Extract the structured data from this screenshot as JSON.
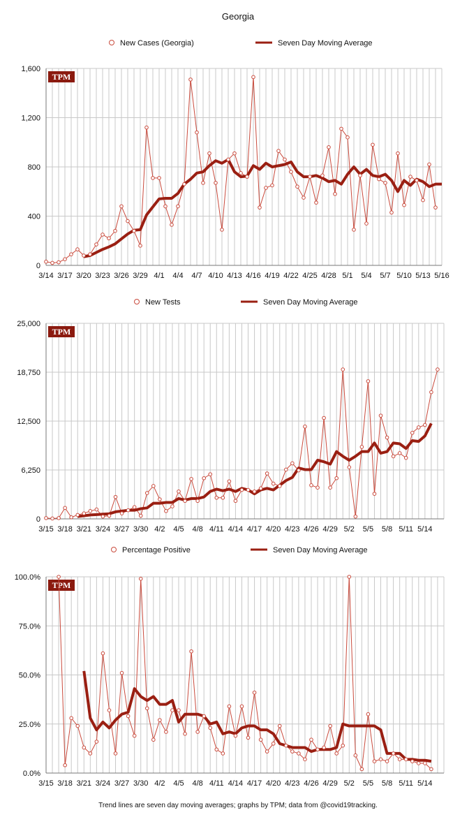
{
  "title": "Georgia",
  "footer": "Trend lines are seven day moving averages; graphs by TPM; data from @covid19tracking.",
  "colors": {
    "raw": "#c94a3c",
    "avg": "#9a1f12",
    "logo": "#8b1a0f"
  },
  "chart_data": [
    {
      "type": "line",
      "logo": "TPM",
      "legend": [
        "New Cases (Georgia)",
        "Seven Day Moving Average"
      ],
      "ylim": [
        0,
        1600
      ],
      "yticks": [
        0,
        400,
        800,
        1200,
        1600
      ],
      "ytick_labels": [
        "0",
        "400",
        "800",
        "1,200",
        "1,600"
      ],
      "xlim": [
        0,
        63
      ],
      "xticks": [
        0,
        3,
        6,
        9,
        12,
        15,
        18,
        21,
        24,
        27,
        30,
        33,
        36,
        39,
        42,
        45,
        48,
        51,
        54,
        57,
        60,
        63
      ],
      "xtick_labels": [
        "3/14",
        "3/17",
        "3/20",
        "3/23",
        "3/26",
        "3/29",
        "4/1",
        "4/4",
        "4/7",
        "4/10",
        "4/13",
        "4/16",
        "4/19",
        "4/22",
        "4/25",
        "4/28",
        "5/1",
        "5/4",
        "5/7",
        "5/10",
        "5/13",
        "5/16"
      ],
      "x_start": 0,
      "values": [
        30,
        20,
        25,
        50,
        90,
        130,
        80,
        90,
        170,
        250,
        220,
        280,
        480,
        360,
        280,
        160,
        1120,
        710,
        710,
        480,
        330,
        480,
        660,
        1510,
        1080,
        670,
        910,
        670,
        290,
        860,
        910,
        750,
        720,
        1530,
        470,
        630,
        650,
        930,
        860,
        760,
        640,
        550,
        720,
        510,
        730,
        960,
        580,
        1110,
        1040,
        290,
        730,
        340,
        980,
        700,
        670,
        430,
        910,
        490,
        720,
        690,
        530,
        820,
        470
      ],
      "avg_start": 6,
      "avg_values": [
        70,
        80,
        105,
        130,
        150,
        175,
        215,
        255,
        285,
        290,
        410,
        475,
        540,
        545,
        545,
        585,
        660,
        700,
        750,
        760,
        810,
        850,
        830,
        860,
        760,
        720,
        725,
        810,
        780,
        830,
        800,
        810,
        820,
        840,
        760,
        720,
        720,
        730,
        710,
        680,
        690,
        660,
        740,
        800,
        740,
        780,
        730,
        720,
        740,
        690,
        600,
        690,
        650,
        700,
        680,
        640,
        660,
        660
      ]
    },
    {
      "type": "line",
      "logo": "TPM",
      "legend": [
        "New Tests",
        "Seven Day Moving Average"
      ],
      "ylim": [
        0,
        25000
      ],
      "yticks": [
        0,
        6250,
        12500,
        18750,
        25000
      ],
      "ytick_labels": [
        "0",
        "6,250",
        "12,500",
        "18,750",
        "25,000"
      ],
      "xlim": [
        0,
        63
      ],
      "xticks": [
        0,
        3,
        6,
        9,
        12,
        15,
        18,
        21,
        24,
        27,
        30,
        33,
        36,
        39,
        42,
        45,
        48,
        51,
        54,
        57,
        60
      ],
      "xtick_labels": [
        "3/15",
        "3/18",
        "3/21",
        "3/24",
        "3/27",
        "3/30",
        "4/2",
        "4/5",
        "4/8",
        "4/11",
        "4/14",
        "4/17",
        "4/20",
        "4/23",
        "4/26",
        "4/29",
        "5/2",
        "5/5",
        "5/8",
        "5/11",
        "5/14"
      ],
      "x_start": 0,
      "values": [
        100,
        50,
        100,
        1400,
        200,
        500,
        700,
        1000,
        1200,
        300,
        400,
        2800,
        700,
        1100,
        1500,
        400,
        3300,
        4200,
        2500,
        1000,
        1600,
        3500,
        2300,
        5100,
        2300,
        5200,
        5700,
        2700,
        2700,
        4800,
        2300,
        3700,
        3700,
        3500,
        3900,
        5800,
        4500,
        4200,
        6300,
        7100,
        6200,
        11800,
        4300,
        4000,
        12900,
        4000,
        5200,
        19100,
        6600,
        300,
        9200,
        17600,
        3200,
        13200,
        10400,
        8000,
        8400,
        7800,
        11000,
        11700,
        12000,
        16200,
        19100
      ],
      "avg_start": 5,
      "avg_values": [
        300,
        400,
        500,
        550,
        600,
        650,
        900,
        1000,
        1100,
        1100,
        1300,
        1400,
        2000,
        2000,
        2100,
        2100,
        2600,
        2400,
        2600,
        2600,
        2800,
        3500,
        3800,
        3600,
        3800,
        3500,
        3900,
        3700,
        3200,
        3700,
        3900,
        3700,
        4300,
        4900,
        5300,
        6500,
        6300,
        6300,
        7500,
        7300,
        7000,
        8600,
        8000,
        7500,
        8000,
        8600,
        8600,
        9700,
        8400,
        8600,
        9700,
        9600,
        9000,
        10000,
        9900,
        10600,
        12200
      ]
    },
    {
      "type": "line",
      "logo": "TPM",
      "legend": [
        "Percentage Positive",
        "Seven Day Moving Average"
      ],
      "ylim": [
        0,
        100
      ],
      "yticks": [
        0,
        25,
        50,
        75,
        100
      ],
      "ytick_labels": [
        "0.0%",
        "25.0%",
        "50.0%",
        "75.0%",
        "100.0%"
      ],
      "xlim": [
        0,
        63
      ],
      "xticks": [
        0,
        3,
        6,
        9,
        12,
        15,
        18,
        21,
        24,
        27,
        30,
        33,
        36,
        39,
        42,
        45,
        48,
        51,
        54,
        57,
        60
      ],
      "xtick_labels": [
        "3/15",
        "3/18",
        "3/21",
        "3/24",
        "3/27",
        "3/30",
        "4/2",
        "4/5",
        "4/8",
        "4/11",
        "4/14",
        "4/17",
        "4/20",
        "4/23",
        "4/26",
        "4/29",
        "5/2",
        "5/5",
        "5/8",
        "5/11",
        "5/14"
      ],
      "x_start": 2,
      "values": [
        100,
        4,
        28,
        24,
        13,
        10,
        16,
        61,
        32,
        10,
        51,
        29,
        19,
        99,
        33,
        17,
        27,
        21,
        32,
        32,
        20,
        62,
        21,
        29,
        23,
        12,
        10,
        34,
        19,
        34,
        18,
        41,
        17,
        11,
        15,
        24,
        14,
        11,
        10,
        7,
        17,
        12,
        13,
        24,
        10,
        14,
        100,
        9,
        2,
        30,
        6,
        7,
        6,
        10,
        7,
        7,
        6,
        5,
        5,
        2
      ],
      "avg_start": 6,
      "avg_values": [
        52,
        28,
        22,
        26,
        23,
        27,
        30,
        31,
        43,
        39,
        37,
        39,
        35,
        35,
        37,
        26,
        30,
        30,
        30,
        29,
        25,
        26,
        20,
        21,
        20,
        23,
        24,
        24,
        22,
        22,
        20,
        15,
        14,
        13,
        13,
        13,
        11,
        12,
        12,
        12,
        13,
        25,
        24,
        24,
        24,
        24,
        24,
        22,
        10,
        10,
        10,
        7,
        7,
        6.5,
        6.5,
        6
      ]
    }
  ]
}
